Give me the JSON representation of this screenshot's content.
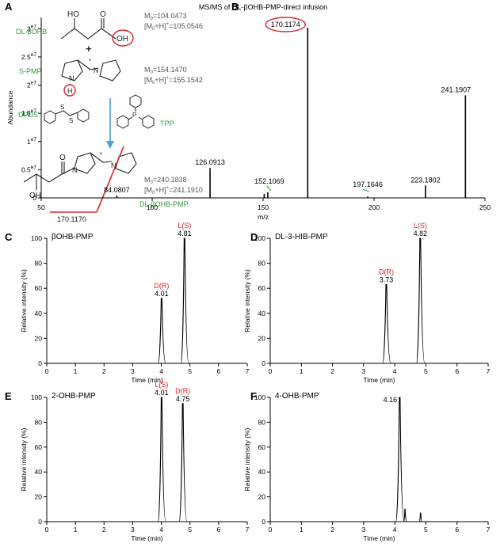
{
  "panel_a": {
    "letter": "A",
    "bohb_label": "DL-βOHB",
    "bohb_m0": "M",
    "bohb_m0_sub": "0",
    "bohb_m0_val": "=104.0473",
    "bohb_mh": "[M",
    "bohb_mh_sub": "0",
    "bohb_mh_val": "+H]",
    "bohb_mh_sup": "+",
    "bohb_mh_num": "=105.0546",
    "ho": "HO",
    "oh": "OH",
    "o": "O",
    "plus": "+",
    "spmp_label": "S-PMP",
    "spmp_m0": "M",
    "spmp_m0_sub": "0",
    "spmp_m0_val": "=154.1470",
    "spmp_mh": "[M",
    "spmp_mh_sub": "0",
    "spmp_mh_val": "+H]",
    "spmp_mh_sup": "+",
    "spmp_mh_num": "=155.1542",
    "n": "N",
    "h": "H",
    "star": "*",
    "dpds_label": "DPDS",
    "s": "S",
    "p": "P",
    "tpp_label": "TPP",
    "prod_m0": "M",
    "prod_m0_sub": "0",
    "prod_m0_val": "=240.1838",
    "prod_mh": "[M",
    "prod_mh_sub": "0",
    "prod_mh_val": "+H]",
    "prod_mh_sup": "+",
    "prod_mh_num": "=241.1910",
    "prod_label": "DL-βOHB-PMP",
    "frag_label": "170.1170",
    "colors": {
      "green": "#2e9a3e",
      "red": "#d9232a",
      "arrow": "#4a9fd4"
    }
  },
  "chart_data": [
    {
      "id": "B",
      "type": "bar",
      "letter": "B",
      "title": "MS/MS of DL-βOHB-PMP-direct infusion",
      "xlabel": "m/z",
      "ylabel": "Abundance",
      "xlim": [
        50,
        250
      ],
      "ylim": [
        0,
        32000000.0
      ],
      "xticks": [
        50,
        100,
        150,
        200,
        250
      ],
      "yticks": [
        {
          "value": 0,
          "label": "0"
        },
        {
          "value": 5000000,
          "label": "0.5",
          "sup": "e7"
        },
        {
          "value": 10000000,
          "label": "1",
          "sup": "e7"
        },
        {
          "value": 15000000,
          "label": "1.5",
          "sup": "e7"
        },
        {
          "value": 20000000,
          "label": "2",
          "sup": "e7"
        },
        {
          "value": 25000000,
          "label": "2.5",
          "sup": "e7"
        },
        {
          "value": 30000000,
          "label": "3",
          "sup": "e7"
        }
      ],
      "peaks": [
        {
          "x": 84.0807,
          "y": 400000,
          "label": "84.0807"
        },
        {
          "x": 126.0913,
          "y": 5300000,
          "label": "126.0913"
        },
        {
          "x": 150.5,
          "y": 700000
        },
        {
          "x": 152.1069,
          "y": 1000000,
          "label": "152.1069"
        },
        {
          "x": 170.1174,
          "y": 30200000,
          "label": "170.1174"
        },
        {
          "x": 197.1646,
          "y": 250000,
          "label": "197.1646"
        },
        {
          "x": 223.1802,
          "y": 2200000,
          "label": "223.1802"
        },
        {
          "x": 241.1907,
          "y": 18200000,
          "label": "241.1907"
        }
      ]
    },
    {
      "id": "C",
      "type": "line",
      "letter": "C",
      "title": "βOHB-PMP",
      "xlabel": "Time (min)",
      "ylabel": "Relative intensity (%)",
      "xlim": [
        0,
        7
      ],
      "ylim": [
        0,
        100
      ],
      "xticks": [
        0,
        1,
        2,
        3,
        4,
        5,
        6,
        7
      ],
      "yticks": [
        0,
        20,
        40,
        60,
        80,
        100
      ],
      "peaks": [
        {
          "rt": 4.01,
          "height": 52,
          "name": "D(R)",
          "rt_label": "4.01"
        },
        {
          "rt": 4.81,
          "height": 100,
          "name": "L(S)",
          "rt_label": "4.81"
        }
      ]
    },
    {
      "id": "D",
      "type": "line",
      "letter": "D",
      "title": "DL-3-HIB-PMP",
      "xlabel": "Time (min)",
      "ylabel": "Relative intensity (%)",
      "xlim": [
        0,
        7
      ],
      "ylim": [
        0,
        100
      ],
      "xticks": [
        0,
        1,
        2,
        3,
        4,
        5,
        6,
        7
      ],
      "yticks": [
        0,
        20,
        40,
        60,
        80,
        100
      ],
      "peaks": [
        {
          "rt": 3.73,
          "height": 63,
          "name": "D(R)",
          "rt_label": "3.73"
        },
        {
          "rt": 4.82,
          "height": 100,
          "name": "L(S)",
          "rt_label": "4.82"
        }
      ]
    },
    {
      "id": "E",
      "type": "line",
      "letter": "E",
      "title": "2-OHB-PMP",
      "xlabel": "Time (min)",
      "ylabel": "Relative intensity (%)",
      "xlim": [
        0,
        7
      ],
      "ylim": [
        0,
        100
      ],
      "xticks": [
        0,
        1,
        2,
        3,
        4,
        5,
        6,
        7
      ],
      "yticks": [
        0,
        20,
        40,
        60,
        80,
        100
      ],
      "peaks": [
        {
          "rt": 4.01,
          "height": 100,
          "name": "L(S)",
          "rt_label": "4.01"
        },
        {
          "rt": 4.75,
          "height": 95,
          "name": "D(R)",
          "rt_label": "4.75"
        }
      ]
    },
    {
      "id": "F",
      "type": "line",
      "letter": "F",
      "title": "4-OHB-PMP",
      "xlabel": "Time (min)",
      "ylabel": "Relative intensity (%)",
      "xlim": [
        0,
        7
      ],
      "ylim": [
        0,
        100
      ],
      "xticks": [
        0,
        1,
        2,
        3,
        4,
        5,
        6,
        7
      ],
      "yticks": [
        0,
        20,
        40,
        60,
        80,
        100
      ],
      "peaks": [
        {
          "rt": 4.16,
          "height": 100,
          "rt_label": "4.16"
        },
        {
          "rt": 4.33,
          "height": 10
        },
        {
          "rt": 4.83,
          "height": 7
        }
      ]
    }
  ]
}
